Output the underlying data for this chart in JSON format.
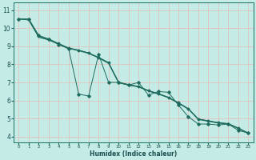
{
  "xlabel": "Humidex (Indice chaleur)",
  "bg_color": "#c5ebe6",
  "grid_color": "#b0d8d2",
  "line_color": "#1e6b5e",
  "marker_color": "#1e6b5e",
  "xlim": [
    -0.5,
    23.5
  ],
  "ylim": [
    3.7,
    11.4
  ],
  "xticks": [
    0,
    1,
    2,
    3,
    4,
    5,
    6,
    7,
    8,
    9,
    10,
    11,
    12,
    13,
    14,
    15,
    16,
    17,
    18,
    19,
    20,
    21,
    22,
    23
  ],
  "yticks": [
    4,
    5,
    6,
    7,
    8,
    9,
    10,
    11
  ],
  "series_jagged": [
    [
      0,
      10.5
    ],
    [
      1,
      10.5
    ],
    [
      2,
      9.6
    ],
    [
      3,
      9.4
    ],
    [
      4,
      9.1
    ],
    [
      5,
      8.85
    ],
    [
      6,
      6.35
    ],
    [
      7,
      6.25
    ],
    [
      8,
      8.55
    ],
    [
      9,
      7.0
    ],
    [
      10,
      7.0
    ],
    [
      11,
      6.85
    ],
    [
      12,
      7.0
    ],
    [
      13,
      6.3
    ],
    [
      14,
      6.5
    ],
    [
      15,
      6.45
    ],
    [
      16,
      5.75
    ],
    [
      17,
      5.1
    ],
    [
      18,
      4.7
    ],
    [
      19,
      4.7
    ],
    [
      20,
      4.65
    ],
    [
      21,
      4.7
    ],
    [
      22,
      4.35
    ],
    [
      23,
      4.2
    ]
  ],
  "series_straight1": [
    [
      0,
      10.5
    ],
    [
      1,
      10.5
    ],
    [
      2,
      9.55
    ],
    [
      3,
      9.4
    ],
    [
      4,
      9.15
    ],
    [
      5,
      8.9
    ],
    [
      6,
      8.78
    ],
    [
      7,
      8.62
    ],
    [
      8,
      8.38
    ],
    [
      9,
      8.1
    ],
    [
      10,
      7.02
    ],
    [
      11,
      6.88
    ],
    [
      12,
      6.78
    ],
    [
      13,
      6.55
    ],
    [
      14,
      6.38
    ],
    [
      15,
      6.18
    ],
    [
      16,
      5.88
    ],
    [
      17,
      5.55
    ],
    [
      18,
      4.98
    ],
    [
      19,
      4.88
    ],
    [
      20,
      4.78
    ],
    [
      21,
      4.72
    ],
    [
      22,
      4.48
    ],
    [
      23,
      4.2
    ]
  ],
  "series_straight2": [
    [
      0,
      10.5
    ],
    [
      1,
      10.45
    ],
    [
      2,
      9.5
    ],
    [
      3,
      9.35
    ],
    [
      4,
      9.1
    ],
    [
      5,
      8.88
    ],
    [
      6,
      8.75
    ],
    [
      7,
      8.6
    ],
    [
      8,
      8.35
    ],
    [
      9,
      8.05
    ],
    [
      10,
      6.98
    ],
    [
      11,
      6.85
    ],
    [
      12,
      6.75
    ],
    [
      13,
      6.52
    ],
    [
      14,
      6.35
    ],
    [
      15,
      6.15
    ],
    [
      16,
      5.85
    ],
    [
      17,
      5.52
    ],
    [
      18,
      4.95
    ],
    [
      19,
      4.85
    ],
    [
      20,
      4.75
    ],
    [
      21,
      4.7
    ],
    [
      22,
      4.45
    ],
    [
      23,
      4.2
    ]
  ],
  "series_straight3": [
    [
      1,
      10.45
    ],
    [
      2,
      9.5
    ],
    [
      3,
      9.35
    ],
    [
      4,
      9.12
    ],
    [
      5,
      8.9
    ],
    [
      6,
      8.78
    ],
    [
      7,
      8.63
    ],
    [
      8,
      8.38
    ],
    [
      9,
      8.08
    ],
    [
      10,
      7.0
    ],
    [
      11,
      6.87
    ],
    [
      12,
      6.77
    ],
    [
      13,
      6.54
    ],
    [
      14,
      6.37
    ],
    [
      15,
      6.17
    ],
    [
      16,
      5.87
    ],
    [
      17,
      5.54
    ],
    [
      18,
      4.97
    ],
    [
      19,
      4.87
    ],
    [
      20,
      4.77
    ],
    [
      21,
      4.72
    ],
    [
      22,
      4.47
    ],
    [
      23,
      4.2
    ]
  ]
}
